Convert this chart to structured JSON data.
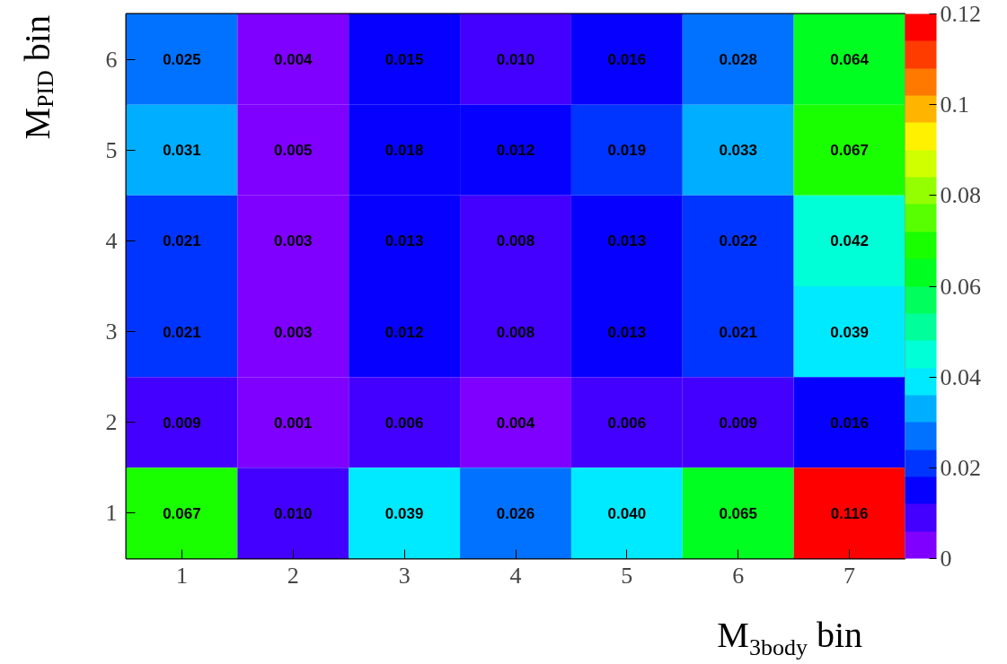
{
  "chart_data": {
    "type": "heatmap",
    "xlabel": "M$_{3body}$ bin",
    "ylabel": "M$_{PID}$ bin",
    "categories": [
      "1",
      "2",
      "3",
      "4",
      "5",
      "6",
      "7"
    ],
    "y_categories": [
      "6",
      "5",
      "4",
      "3",
      "2",
      "1"
    ],
    "cells": [
      [
        0.025,
        0.004,
        0.015,
        0.01,
        0.016,
        0.028,
        0.064
      ],
      [
        0.031,
        0.005,
        0.018,
        0.012,
        0.019,
        0.033,
        0.067
      ],
      [
        0.021,
        0.003,
        0.013,
        0.008,
        0.013,
        0.022,
        0.042
      ],
      [
        0.021,
        0.003,
        0.012,
        0.008,
        0.013,
        0.021,
        0.039
      ],
      [
        0.009,
        0.001,
        0.006,
        0.004,
        0.006,
        0.009,
        0.016
      ],
      [
        0.067,
        0.01,
        0.039,
        0.026,
        0.04,
        0.065,
        0.116
      ]
    ],
    "cell_labels": [
      [
        "0.025",
        "0.004",
        "0.015",
        "0.010",
        "0.016",
        "0.028",
        "0.064"
      ],
      [
        "0.031",
        "0.005",
        "0.018",
        "0.012",
        "0.019",
        "0.033",
        "0.067"
      ],
      [
        "0.021",
        "0.003",
        "0.013",
        "0.008",
        "0.013",
        "0.022",
        "0.042"
      ],
      [
        "0.021",
        "0.003",
        "0.012",
        "0.008",
        "0.013",
        "0.021",
        "0.039"
      ],
      [
        "0.009",
        "0.001",
        "0.006",
        "0.004",
        "0.006",
        "0.009",
        "0.016"
      ],
      [
        "0.067",
        "0.010",
        "0.039",
        "0.026",
        "0.040",
        "0.065",
        "0.116"
      ]
    ],
    "clim": [
      0,
      0.12
    ],
    "cticks": [
      0,
      0.02,
      0.04,
      0.06,
      0.08,
      0.1,
      0.12
    ],
    "data_labels": true,
    "grid": false
  }
}
